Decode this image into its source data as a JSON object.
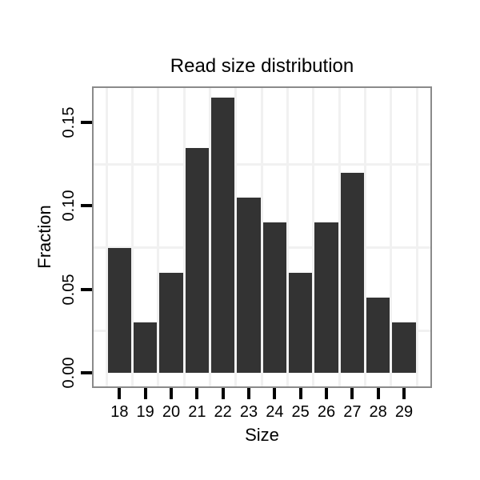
{
  "chart_data": {
    "type": "bar",
    "title": "Read size distribution",
    "xlabel": "Size",
    "ylabel": "Fraction",
    "categories": [
      18,
      19,
      20,
      21,
      22,
      23,
      24,
      25,
      26,
      27,
      28,
      29
    ],
    "values": [
      0.075,
      0.03,
      0.06,
      0.135,
      0.165,
      0.105,
      0.09,
      0.06,
      0.09,
      0.12,
      0.045,
      0.03
    ],
    "x_tick_labels": [
      "18",
      "19",
      "20",
      "21",
      "22",
      "23",
      "24",
      "25",
      "26",
      "27",
      "28",
      "29"
    ],
    "y_tick_values": [
      0,
      0.05,
      0.1,
      0.15
    ],
    "y_tick_labels": [
      "0.00",
      "0.05",
      "0.10",
      "0.15"
    ],
    "x_minor_gridlines": [
      17.5,
      18.5,
      19.5,
      20.5,
      21.5,
      22.5,
      23.5,
      24.5,
      25.5,
      26.5,
      27.5,
      28.5,
      29.5
    ],
    "y_minor_gridlines": [
      0.025,
      0.075,
      0.125
    ],
    "xlim": [
      17.0,
      30.02
    ],
    "ylim": [
      -0.0083,
      0.1708
    ],
    "bar_width_fraction": 0.9,
    "grid": "minor gridlines only, very faint, no major gridlines visible",
    "legend": "none",
    "colors": {
      "bar_fill": "#333333",
      "panel_border": "#8a8a8a",
      "gridline": "#f1f1f1",
      "tick_mark": "#000000",
      "text": "#000000",
      "background": "#ffffff"
    }
  }
}
